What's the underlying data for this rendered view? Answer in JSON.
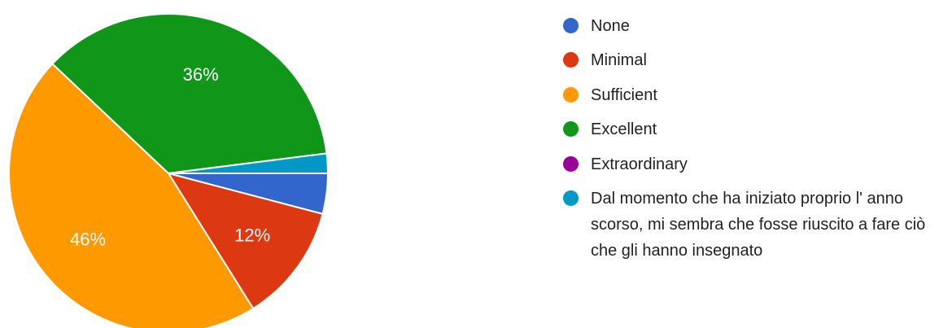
{
  "chart_data": {
    "type": "pie",
    "title": "",
    "slices": [
      {
        "label": "None",
        "value": 4.1,
        "color": "#3366cc",
        "display_label": ""
      },
      {
        "label": "Minimal",
        "value": 12,
        "color": "#dc3912",
        "display_label": "12%"
      },
      {
        "label": "Sufficient",
        "value": 46,
        "color": "#ff9900",
        "display_label": "46%"
      },
      {
        "label": "Excellent",
        "value": 36,
        "color": "#109618",
        "display_label": "36%"
      },
      {
        "label": "Extraordinary",
        "value": 0,
        "color": "#990099",
        "display_label": ""
      },
      {
        "label": "Dal momento che ha iniziato proprio l' anno scorso, mi sembra che fosse riuscito a fare ciò che gli hanno insegnato",
        "value": 2,
        "color": "#0099c6",
        "display_label": ""
      }
    ],
    "start_angle_deg": 90,
    "direction": "clockwise",
    "legend_position": "right"
  }
}
